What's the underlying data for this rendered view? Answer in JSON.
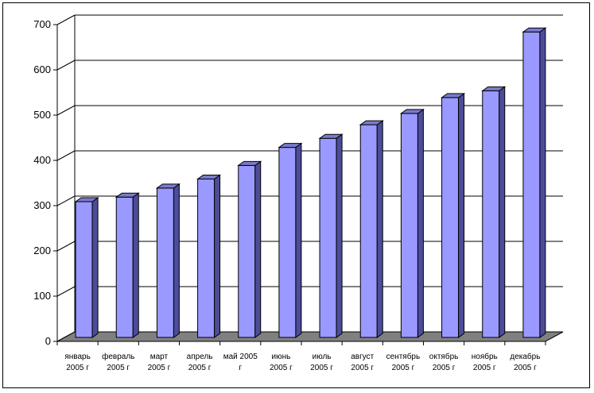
{
  "chart_data": {
    "type": "bar",
    "style": "3d-column",
    "title": "",
    "xlabel": "",
    "ylabel": "",
    "ylim": [
      0,
      700
    ],
    "yticks": [
      0,
      100,
      200,
      300,
      400,
      500,
      600,
      700
    ],
    "grid": true,
    "legend": "none",
    "categories": [
      [
        "январь",
        "2005 г"
      ],
      [
        "февраль",
        "2005 г"
      ],
      [
        "март",
        "2005 г"
      ],
      [
        "апрель",
        "2005 г"
      ],
      [
        "май 2005",
        "г"
      ],
      [
        "июнь",
        "2005 г"
      ],
      [
        "июль",
        "2005 г"
      ],
      [
        "август",
        "2005 г"
      ],
      [
        "сентябрь",
        "2005 г"
      ],
      [
        "октябрь",
        "2005 г"
      ],
      [
        "ноябрь",
        "2005 г"
      ],
      [
        "декабрь",
        "2005 г"
      ]
    ],
    "values": [
      300,
      310,
      330,
      350,
      380,
      420,
      440,
      470,
      495,
      530,
      545,
      675
    ],
    "colors": {
      "bar_front": "#9999ff",
      "bar_side": "#4c4c99",
      "bar_top": "#7a7acc",
      "floor": "#808080",
      "wall": "#ffffff",
      "grid": "#000000"
    }
  }
}
